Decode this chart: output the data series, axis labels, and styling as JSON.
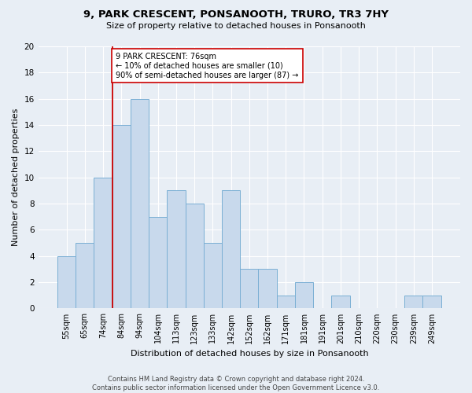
{
  "title": "9, PARK CRESCENT, PONSANOOTH, TRURO, TR3 7HY",
  "subtitle": "Size of property relative to detached houses in Ponsanooth",
  "xlabel": "Distribution of detached houses by size in Ponsanooth",
  "ylabel": "Number of detached properties",
  "bar_labels": [
    "55sqm",
    "65sqm",
    "74sqm",
    "84sqm",
    "94sqm",
    "104sqm",
    "113sqm",
    "123sqm",
    "133sqm",
    "142sqm",
    "152sqm",
    "162sqm",
    "171sqm",
    "181sqm",
    "191sqm",
    "201sqm",
    "210sqm",
    "220sqm",
    "230sqm",
    "239sqm",
    "249sqm"
  ],
  "bar_values": [
    4,
    5,
    10,
    14,
    16,
    7,
    9,
    8,
    5,
    9,
    3,
    3,
    1,
    2,
    0,
    1,
    0,
    0,
    0,
    1,
    1
  ],
  "bar_color": "#c8d9ec",
  "bar_edgecolor": "#7aafd4",
  "vline_x_index": 2,
  "vline_color": "#cc0000",
  "ylim": [
    0,
    20
  ],
  "yticks": [
    0,
    2,
    4,
    6,
    8,
    10,
    12,
    14,
    16,
    18,
    20
  ],
  "annotation_text": "9 PARK CRESCENT: 76sqm\n← 10% of detached houses are smaller (10)\n90% of semi-detached houses are larger (87) →",
  "annotation_box_edgecolor": "#cc0000",
  "annotation_box_facecolor": "#ffffff",
  "footer_line1": "Contains HM Land Registry data © Crown copyright and database right 2024.",
  "footer_line2": "Contains public sector information licensed under the Open Government Licence v3.0.",
  "bg_color": "#e8eef5",
  "plot_bg_color": "#e8eef5",
  "title_fontsize": 9.5,
  "subtitle_fontsize": 8,
  "tick_fontsize": 7,
  "ylabel_fontsize": 8,
  "xlabel_fontsize": 8,
  "annotation_fontsize": 7,
  "footer_fontsize": 6
}
